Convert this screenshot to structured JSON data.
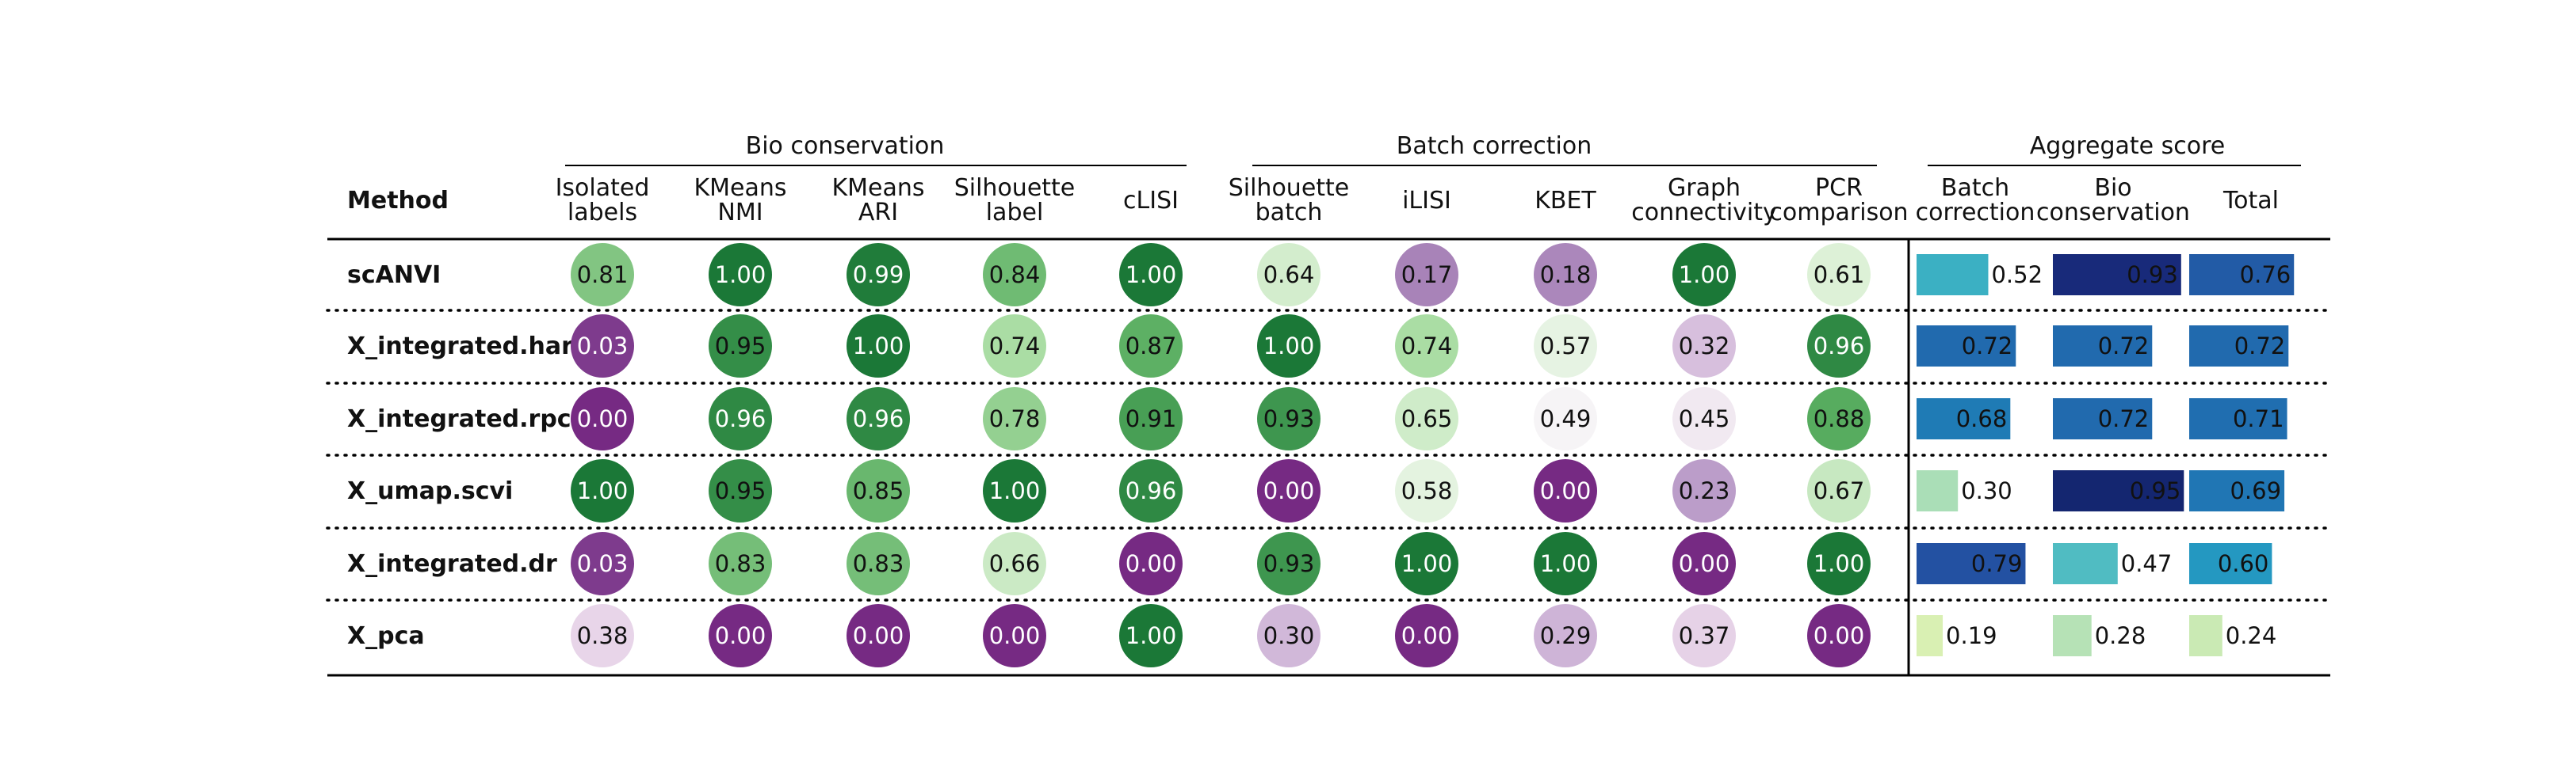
{
  "chart_data": {
    "type": "table",
    "method_header": "Method",
    "groups": [
      {
        "name": "Bio conservation",
        "metrics": [
          "Isolated labels",
          "KMeans NMI",
          "KMeans ARI",
          "Silhouette label",
          "cLISI"
        ]
      },
      {
        "name": "Batch correction",
        "metrics": [
          "Silhouette batch",
          "iLISI",
          "KBET",
          "Graph connectivity",
          "PCR comparison"
        ]
      },
      {
        "name": "Aggregate score",
        "metrics": [
          "Batch correction",
          "Bio conservation",
          "Total"
        ]
      }
    ],
    "column_headers": [
      [
        "Isolated",
        "labels"
      ],
      [
        "KMeans",
        "NMI"
      ],
      [
        "KMeans",
        "ARI"
      ],
      [
        "Silhouette",
        "label"
      ],
      [
        "cLISI"
      ],
      [
        "Silhouette",
        "batch"
      ],
      [
        "iLISI"
      ],
      [
        "KBET"
      ],
      [
        "Graph",
        "connectivity"
      ],
      [
        "PCR",
        "comparison"
      ],
      [
        "Batch",
        "correction"
      ],
      [
        "Bio",
        "conservation"
      ],
      [
        "Total"
      ]
    ],
    "methods": [
      "scANVI",
      "X_integrated.harn",
      "X_integrated.rpca",
      "X_umap.scvi",
      "X_integrated.dr",
      "X_pca"
    ],
    "values": [
      [
        0.81,
        1.0,
        0.99,
        0.84,
        1.0,
        0.64,
        0.17,
        0.18,
        1.0,
        0.61,
        0.52,
        0.93,
        0.76
      ],
      [
        0.03,
        0.95,
        1.0,
        0.74,
        0.87,
        1.0,
        0.74,
        0.57,
        0.32,
        0.96,
        0.72,
        0.72,
        0.72
      ],
      [
        0.0,
        0.96,
        0.96,
        0.78,
        0.91,
        0.93,
        0.65,
        0.49,
        0.45,
        0.88,
        0.68,
        0.72,
        0.71
      ],
      [
        1.0,
        0.95,
        0.85,
        1.0,
        0.96,
        0.0,
        0.58,
        0.0,
        0.23,
        0.67,
        0.3,
        0.95,
        0.69
      ],
      [
        0.03,
        0.83,
        0.83,
        0.66,
        0.0,
        0.93,
        1.0,
        1.0,
        0.0,
        1.0,
        0.79,
        0.47,
        0.6
      ],
      [
        0.38,
        0.0,
        0.0,
        0.0,
        1.0,
        0.3,
        0.0,
        0.29,
        0.37,
        0.0,
        0.19,
        0.28,
        0.24
      ]
    ],
    "labels": [
      [
        "0.81",
        "1.00",
        "0.99",
        "0.84",
        "1.00",
        "0.64",
        "0.17",
        "0.18",
        "1.00",
        "0.61",
        "0.52",
        "0.93",
        "0.76"
      ],
      [
        "0.03",
        "0.95",
        "1.00",
        "0.74",
        "0.87",
        "1.00",
        "0.74",
        "0.57",
        "0.32",
        "0.96",
        "0.72",
        "0.72",
        "0.72"
      ],
      [
        "0.00",
        "0.96",
        "0.96",
        "0.78",
        "0.91",
        "0.93",
        "0.65",
        "0.49",
        "0.45",
        "0.88",
        "0.68",
        "0.72",
        "0.71"
      ],
      [
        "1.00",
        "0.95",
        "0.85",
        "1.00",
        "0.96",
        "0.00",
        "0.58",
        "0.00",
        "0.23",
        "0.67",
        "0.30",
        "0.95",
        "0.69"
      ],
      [
        "0.03",
        "0.83",
        "0.83",
        "0.66",
        "0.00",
        "0.93",
        "1.00",
        "1.00",
        "0.00",
        "1.00",
        "0.79",
        "0.47",
        "0.60"
      ],
      [
        "0.38",
        "0.00",
        "0.00",
        "0.00",
        "1.00",
        "0.30",
        "0.00",
        "0.29",
        "0.37",
        "0.00",
        "0.19",
        "0.28",
        "0.24"
      ]
    ],
    "circle_colormap": "PRGn",
    "bar_colormap": "YlGnBu",
    "legend": "none",
    "grid": false
  }
}
